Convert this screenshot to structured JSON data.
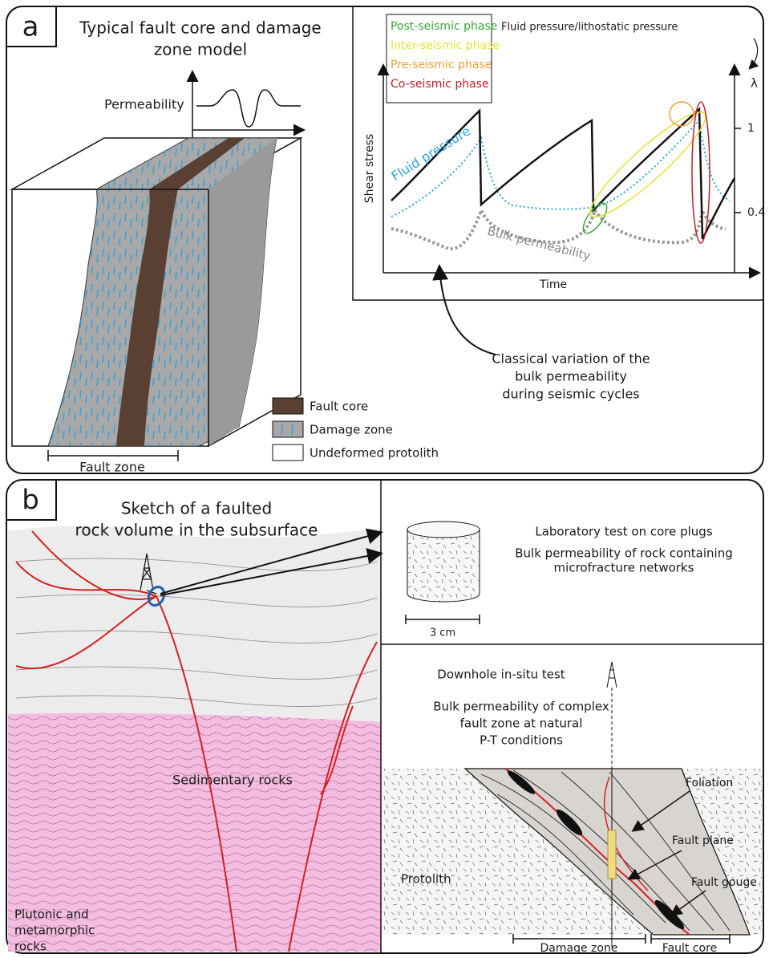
{
  "panel_a": {
    "label": "a",
    "title_lines": [
      "Typical fault core and damage",
      "zone model"
    ],
    "permeability_label": "Permeability",
    "fault_zone_label": "Fault zone",
    "legend": [
      "Fault core",
      "Damage zone",
      "Undeformed protolith"
    ],
    "graph": {
      "phases": [
        "Post-seismic phase",
        "Inter-seismic phase",
        "Pre-seismic phase",
        "Co-seismic phase"
      ],
      "ratio_label": "Fluid pressure/lithostatic pressure",
      "lambda": "λ",
      "ratio_ticks": [
        "1",
        "0.4"
      ],
      "y_label": "Shear stress",
      "x_label": "Time",
      "fluid_pressure_label": "Fluid pressure",
      "bulk_permeability_label": "Bulk permeability"
    },
    "caption_lines": [
      "Classical variation of the",
      "bulk permeability",
      "during seismic cycles"
    ]
  },
  "panel_b": {
    "label": "b",
    "title_lines": [
      "Sketch of a faulted",
      "rock volume in the subsurface"
    ],
    "sedimentary_label": "Sedimentary rocks",
    "plutonic_lines": [
      "Plutonic and",
      "metamorphic",
      "rocks"
    ],
    "lab": {
      "title": "Laboratory test on core plugs",
      "description_lines": [
        "Bulk permeability of rock containing",
        "microfracture networks"
      ],
      "scale": "3 cm"
    },
    "downhole": {
      "title": "Downhole in-situ test",
      "description_lines": [
        "Bulk permeability of complex",
        "fault zone at natural",
        "P-T conditions"
      ],
      "labels": {
        "foliation": "Foliation",
        "fault_plane": "Fault plane",
        "fault_gouge": "Fault gouge",
        "protolith": "Protolith",
        "damage_zone": "Damage zone",
        "fault_core": "Fault core"
      }
    }
  }
}
